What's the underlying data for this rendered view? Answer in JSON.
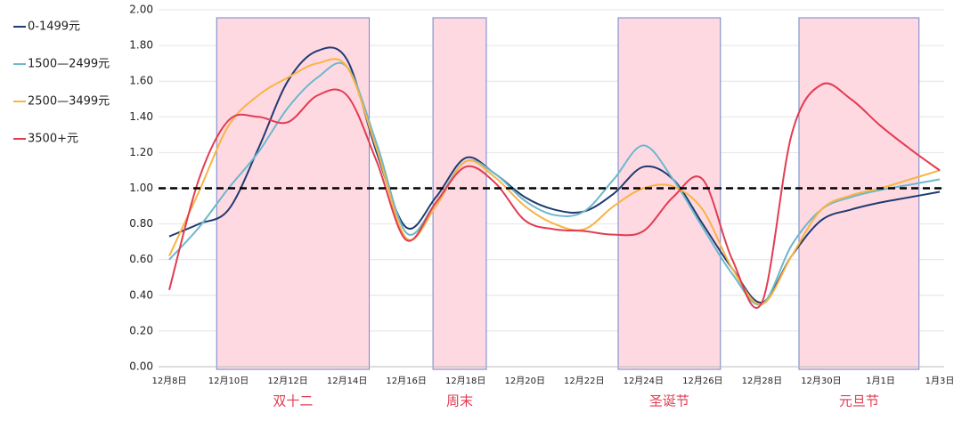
{
  "chart_data": {
    "type": "line",
    "categories": [
      "12月8日",
      null,
      "12月10日",
      null,
      "12月12日",
      null,
      "12月14日",
      null,
      "12月16日",
      null,
      "12月18日",
      null,
      "12月20日",
      null,
      "12月22日",
      null,
      "12月24日",
      null,
      "12月26日",
      null,
      "12月28日",
      null,
      "12月30日",
      null,
      "1月1日",
      null,
      "1月3日"
    ],
    "series": [
      {
        "name": "0-1499元",
        "color": "#203a72",
        "values": [
          0.73,
          0.8,
          0.88,
          1.22,
          1.6,
          1.77,
          1.72,
          1.2,
          0.78,
          0.95,
          1.17,
          1.08,
          0.95,
          0.88,
          0.87,
          0.97,
          1.12,
          1.05,
          0.8,
          0.55,
          0.36,
          0.62,
          0.82,
          0.88,
          0.92,
          0.95,
          0.98
        ]
      },
      {
        "name": "1500—2499元",
        "color": "#6cb8cc",
        "values": [
          0.6,
          0.78,
          1.0,
          1.2,
          1.45,
          1.62,
          1.68,
          1.25,
          0.75,
          0.92,
          1.15,
          1.08,
          0.93,
          0.85,
          0.87,
          1.05,
          1.24,
          1.05,
          0.78,
          0.52,
          0.35,
          0.68,
          0.88,
          0.95,
          0.99,
          1.02,
          1.05
        ]
      },
      {
        "name": "2500—3499元",
        "color": "#f8b445",
        "values": [
          0.62,
          0.98,
          1.35,
          1.52,
          1.62,
          1.7,
          1.68,
          1.22,
          0.72,
          0.9,
          1.15,
          1.06,
          0.9,
          0.8,
          0.77,
          0.9,
          1.0,
          1.01,
          0.88,
          0.55,
          0.35,
          0.62,
          0.88,
          0.96,
          1.0,
          1.05,
          1.1
        ]
      },
      {
        "name": "3500+元",
        "color": "#e23c52",
        "values": [
          0.43,
          1.05,
          1.38,
          1.4,
          1.37,
          1.52,
          1.52,
          1.15,
          0.71,
          0.92,
          1.12,
          1.03,
          0.82,
          0.77,
          0.76,
          0.74,
          0.76,
          0.95,
          1.05,
          0.6,
          0.36,
          1.3,
          1.58,
          1.5,
          1.35,
          1.22,
          1.1
        ]
      }
    ],
    "ylim": [
      0,
      2
    ],
    "yticks": [
      {
        "value": 0,
        "label": "0.00"
      },
      {
        "value": 0.2,
        "label": "0.20"
      },
      {
        "value": 0.4,
        "label": "0.40"
      },
      {
        "value": 0.6,
        "label": "0.60"
      },
      {
        "value": 0.8,
        "label": "0.80"
      },
      {
        "value": 1,
        "label": "1.00"
      },
      {
        "value": 1.2,
        "label": "1.20"
      },
      {
        "value": 1.4,
        "label": "1.40"
      },
      {
        "value": 1.6,
        "label": "1.60"
      },
      {
        "value": 1.8,
        "label": "1.80"
      },
      {
        "value": 2,
        "label": "2.00"
      }
    ],
    "reference_line": 1,
    "grid": true,
    "legend": "left",
    "periods": [
      {
        "label": "双十二"
      },
      {
        "label": "周末"
      },
      {
        "label": "圣诞节"
      },
      {
        "label": "元旦节"
      }
    ]
  }
}
